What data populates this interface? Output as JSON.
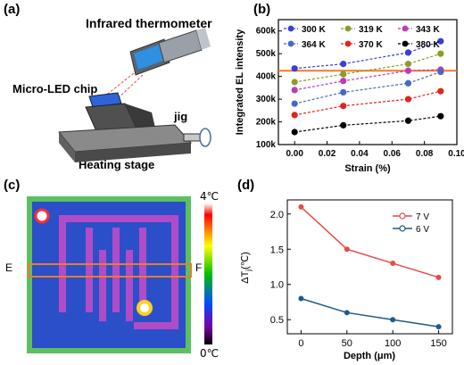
{
  "panels": {
    "a": "(a)",
    "b": "(b)",
    "c": "(c)",
    "d": "(d)"
  },
  "panel_a": {
    "infrared_label": "Infrared thermometer",
    "chip_label": "Micro-LED chip",
    "jig_label": "jig",
    "stage_label": "Heating stage"
  },
  "panel_c": {
    "left_marker": "E",
    "right_marker": "F",
    "scale_max": "4℃",
    "scale_min": "0℃"
  },
  "chart_data": [
    {
      "type": "scatter",
      "panel": "b",
      "xlabel": "Strain (%)",
      "ylabel": "Integrated EL intensity",
      "xlim": [
        -0.01,
        0.1
      ],
      "ylim": [
        100000,
        650000
      ],
      "x_ticks": [
        "0.00",
        "0.02",
        "0.04",
        "0.06",
        "0.08",
        "0.10"
      ],
      "y_ticks": [
        "100k",
        "200k",
        "300k",
        "400k",
        "500k",
        "600k"
      ],
      "x": [
        0.0,
        0.03,
        0.07,
        0.09
      ],
      "series": [
        {
          "name": "300 K",
          "color": "#3a3fd6",
          "values": [
            435000,
            455000,
            505000,
            555000
          ]
        },
        {
          "name": "319 K",
          "color": "#8f9a2e",
          "values": [
            375000,
            410000,
            455000,
            500000
          ]
        },
        {
          "name": "343 K",
          "color": "#c03ab4",
          "values": [
            340000,
            380000,
            425000,
            430000
          ]
        },
        {
          "name": "364 K",
          "color": "#4668c5",
          "values": [
            280000,
            330000,
            370000,
            420000
          ]
        },
        {
          "name": "370 K",
          "color": "#e3241b",
          "values": [
            230000,
            270000,
            300000,
            335000
          ]
        },
        {
          "name": "380 K",
          "color": "#000000",
          "values": [
            155000,
            185000,
            205000,
            225000
          ]
        }
      ],
      "reference_line": {
        "y": 425000,
        "color": "#f07a2a"
      },
      "legend": "top"
    },
    {
      "type": "line",
      "panel": "d",
      "xlabel": "Depth (μm)",
      "ylabel": "ΔT",
      "ylabel_sub": "j",
      "ylabel_unit": "(℃)",
      "x": [
        0,
        50,
        100,
        150
      ],
      "xlim": [
        -15,
        165
      ],
      "ylim": [
        0.3,
        2.2
      ],
      "x_ticks": [
        "0",
        "50",
        "100",
        "150"
      ],
      "y_ticks": [
        "0.5",
        "1.0",
        "1.5",
        "2.0"
      ],
      "series": [
        {
          "name": "7 V",
          "color": "#e84a4a",
          "values": [
            2.1,
            1.5,
            1.3,
            1.1
          ]
        },
        {
          "name": "6 V",
          "color": "#1f5a8a",
          "values": [
            0.8,
            0.6,
            0.5,
            0.4
          ]
        }
      ],
      "legend": "top-right"
    }
  ]
}
